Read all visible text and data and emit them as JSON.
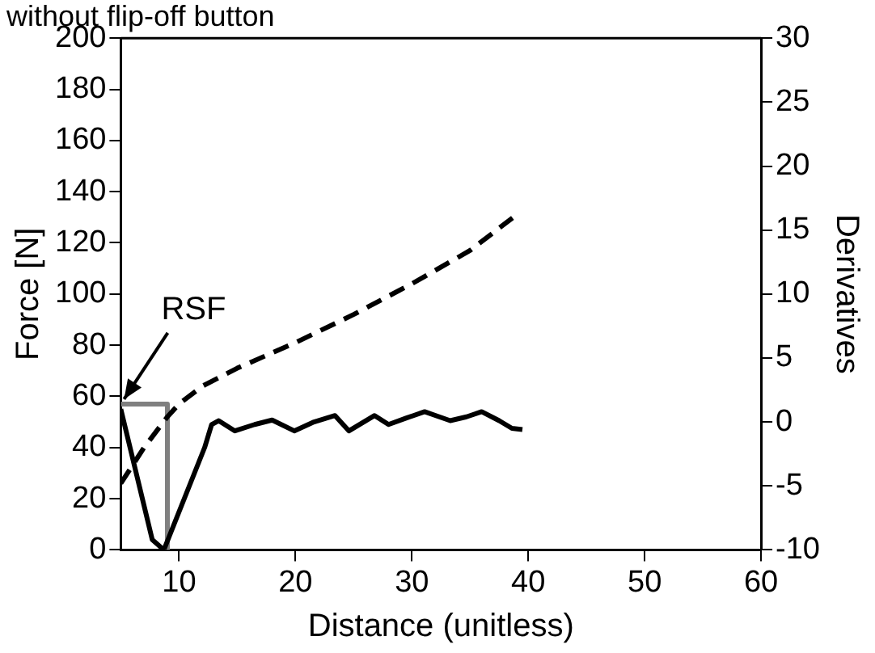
{
  "chart_data": {
    "type": "line",
    "title": "without flip-off button",
    "xlabel": "Distance (unitless)",
    "ylabel": "Force [N]",
    "y2label": "Derivatives",
    "xlim": [
      5,
      60
    ],
    "xticks": [
      10,
      20,
      30,
      40,
      50,
      60
    ],
    "ylim": [
      0,
      200
    ],
    "yticks": [
      0,
      20,
      40,
      60,
      80,
      100,
      120,
      140,
      160,
      180,
      200
    ],
    "y2lim": [
      -10,
      30
    ],
    "y2ticks": [
      -10,
      -5,
      0,
      5,
      10,
      15,
      20,
      25,
      30
    ],
    "grid": false,
    "legend": false,
    "marker": "none",
    "annotations": [
      {
        "text": "RSF",
        "x": 5,
        "y": 57
      }
    ],
    "series": [
      {
        "color": "#000000",
        "line_style": "dashed",
        "x": [
          5,
          7,
          9,
          10,
          12,
          15,
          20,
          25,
          30,
          35,
          39
        ],
        "values": [
          26,
          40,
          52,
          57,
          64,
          71,
          81,
          92,
          104,
          117,
          131
        ]
      },
      {
        "color": "#000000",
        "line_style": "solid",
        "axis": "y2",
        "x": [
          5,
          7.7,
          8.7,
          12.2,
          12.8,
          13.4,
          14.8,
          16.5,
          18,
          19.9,
          21.6,
          23.4,
          24.6,
          26.8,
          28,
          29.5,
          31.1,
          33.3,
          34.7,
          36,
          37.5,
          38.6,
          39.5
        ],
        "values": [
          1,
          -9.2,
          -10,
          -2,
          -0.2,
          0.1,
          -0.7,
          -0.2,
          0.15,
          -0.7,
          0,
          0.5,
          -0.7,
          0.5,
          -0.2,
          0.3,
          0.8,
          0.1,
          0.4,
          0.8,
          0.1,
          -0.5,
          -0.6
        ]
      },
      {
        "color": "#808080",
        "line_style": "solid",
        "x": [
          5,
          9,
          9
        ],
        "values": [
          57,
          57,
          0
        ]
      }
    ]
  }
}
